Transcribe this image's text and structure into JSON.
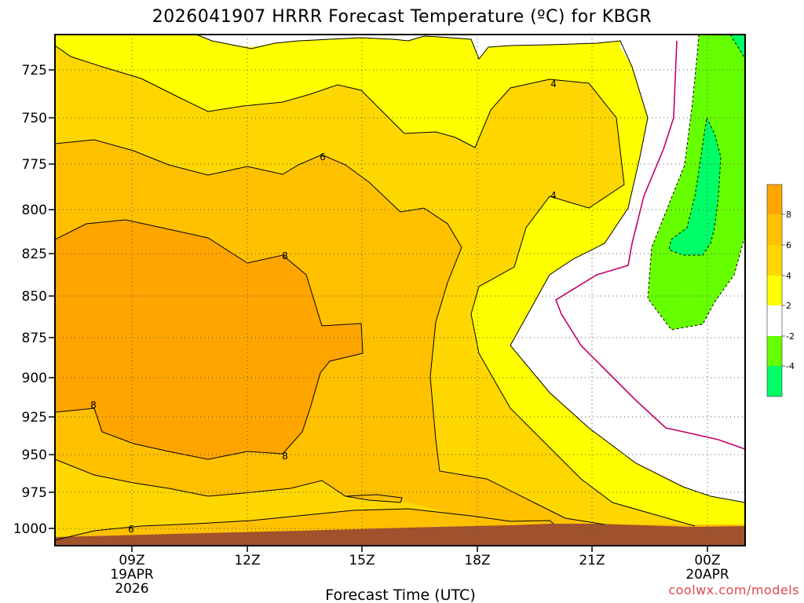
{
  "chart_data": {
    "type": "contour",
    "title": "2026041907 HRRR Forecast Temperature (ºC) for KBGR",
    "xlabel": "Forecast Time (UTC)",
    "credit": "coolwx.com/models",
    "x_ticks": [
      {
        "label": "09Z",
        "sub1": "19APR",
        "sub2": "2026"
      },
      {
        "label": "12Z",
        "sub1": "",
        "sub2": ""
      },
      {
        "label": "15Z",
        "sub1": "",
        "sub2": ""
      },
      {
        "label": "18Z",
        "sub1": "",
        "sub2": ""
      },
      {
        "label": "21Z",
        "sub1": "",
        "sub2": ""
      },
      {
        "label": "00Z",
        "sub1": "20APR",
        "sub2": ""
      }
    ],
    "y_ticks": [
      "725",
      "750",
      "775",
      "800",
      "825",
      "850",
      "875",
      "900",
      "925",
      "950",
      "975",
      "1000"
    ],
    "grid": true,
    "legend": "right",
    "colorbar": {
      "labels": [
        "8",
        "6",
        "4",
        "2",
        "-2",
        "-4"
      ],
      "colors": [
        "#ffa500",
        "#ffc000",
        "#ffd700",
        "#ffff00",
        "#ffffff",
        "#66ff00",
        "#00ff66"
      ]
    },
    "contour_labels": [
      {
        "text": "4"
      },
      {
        "text": "4"
      },
      {
        "text": "6"
      },
      {
        "text": "8"
      },
      {
        "text": "8"
      },
      {
        "text": "8"
      },
      {
        "text": "6"
      }
    ],
    "colors": {
      "ground": "#a0522d",
      "freezing_line": "#c0006a"
    }
  }
}
